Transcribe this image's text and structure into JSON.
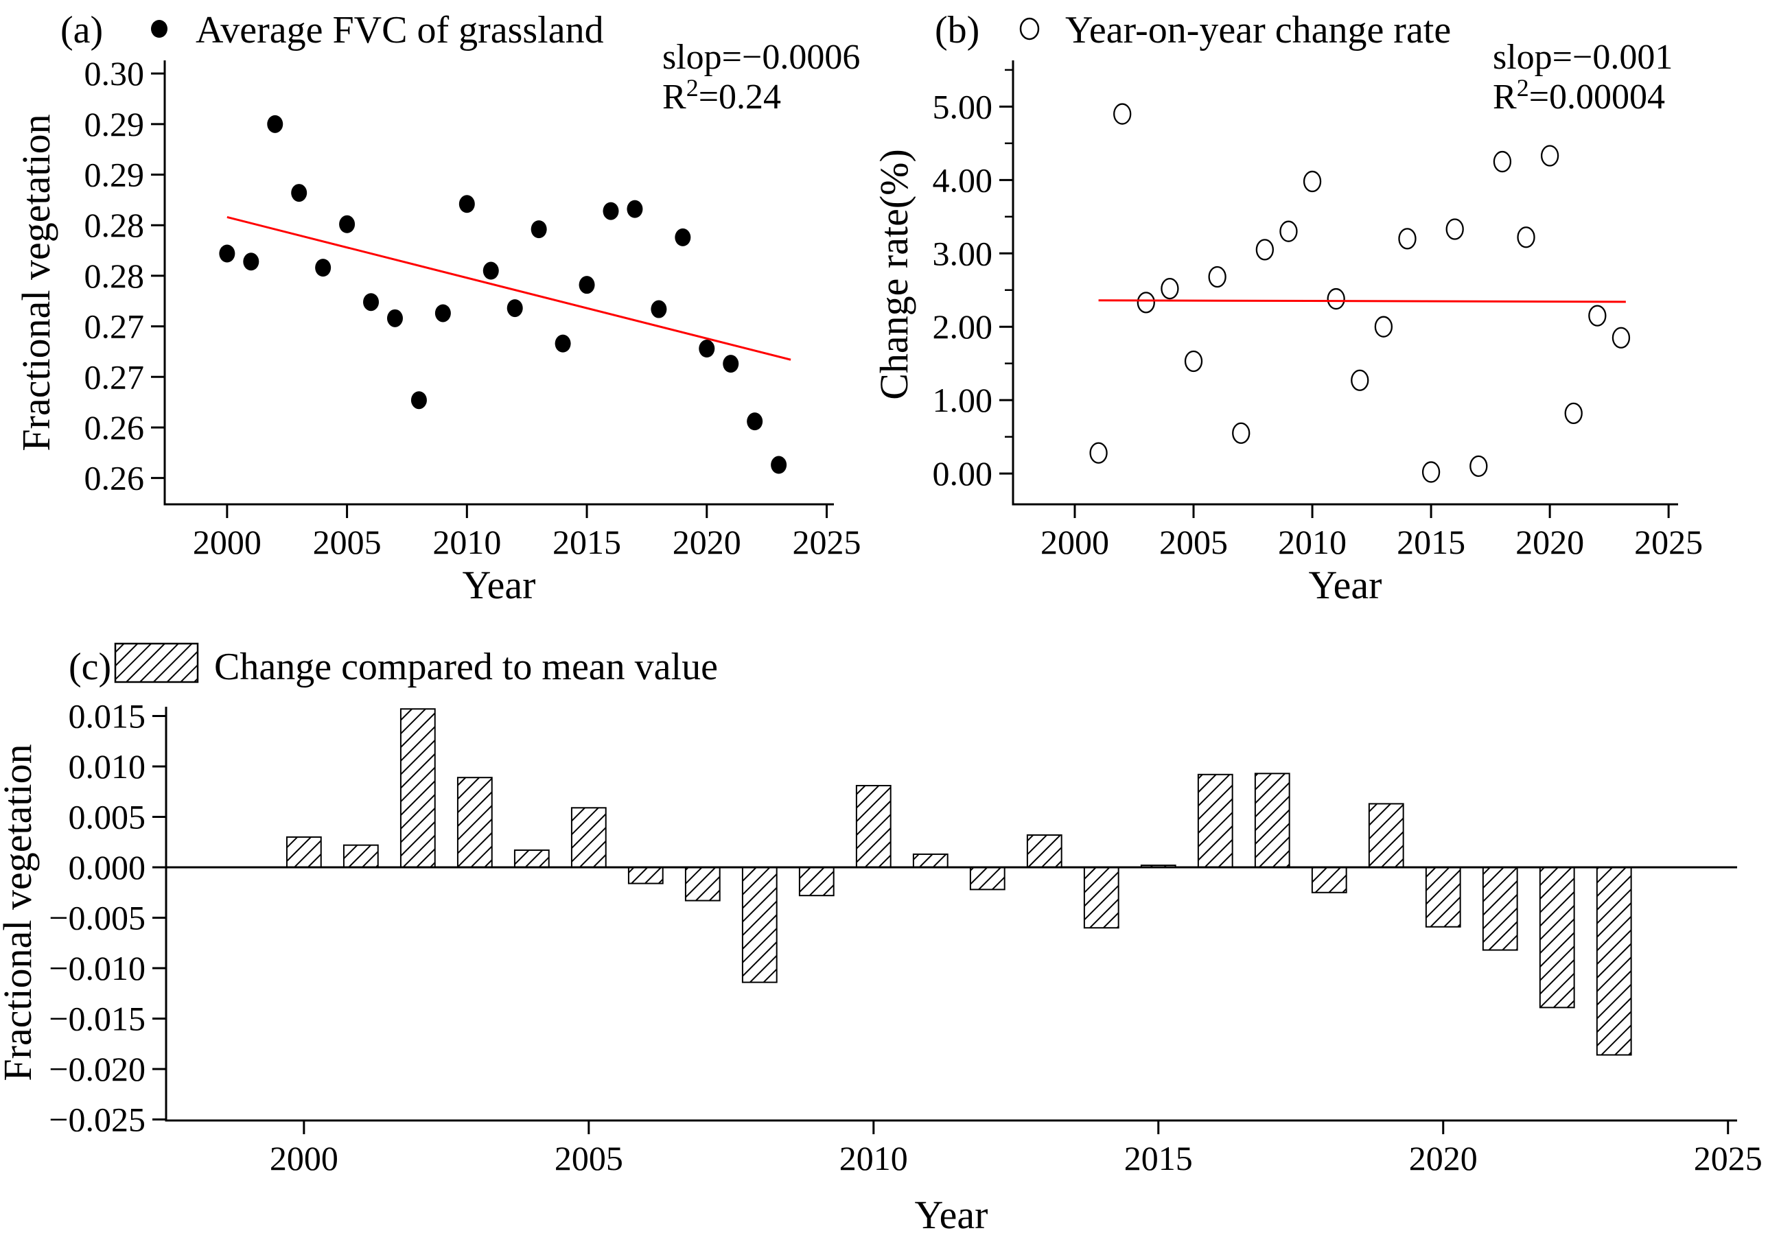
{
  "figure": {
    "background": "#ffffff",
    "ink": "#000000",
    "trend_color": "#ff0000"
  },
  "chart_data": [
    {
      "id": "a",
      "type": "scatter",
      "panel_label": "(a)",
      "legend": {
        "marker": "filled-circle",
        "label": "Average FVC of grassland",
        "position": "top-left"
      },
      "annotation": {
        "slope_text": "slop=−0.0006",
        "r2_base": "R",
        "r2_sup": "2",
        "r2_rest": "=0.24"
      },
      "xlabel": "Year",
      "ylabel": "Fractional vegetation",
      "grid": false,
      "xlim": [
        1997.4,
        2025.3
      ],
      "ylim": [
        0.2574,
        0.3013
      ],
      "x": [
        2000,
        2001,
        2002,
        2003,
        2004,
        2005,
        2006,
        2007,
        2008,
        2009,
        2010,
        2011,
        2012,
        2013,
        2014,
        2015,
        2016,
        2017,
        2018,
        2019,
        2020,
        2021,
        2022,
        2023
      ],
      "y": [
        0.2822,
        0.2814,
        0.295,
        0.2882,
        0.2808,
        0.2851,
        0.2774,
        0.2758,
        0.2677,
        0.2763,
        0.2871,
        0.2805,
        0.2768,
        0.2846,
        0.2733,
        0.2791,
        0.2864,
        0.2866,
        0.2767,
        0.2838,
        0.2728,
        0.2713,
        0.2656,
        0.2613
      ],
      "trendline": {
        "x1": 2000,
        "y1": 0.2858,
        "x2": 2023.5,
        "y2": 0.2717
      },
      "x_ticks": [
        {
          "v": 2000,
          "label": "2000"
        },
        {
          "v": 2005,
          "label": "2005"
        },
        {
          "v": 2010,
          "label": "2010"
        },
        {
          "v": 2015,
          "label": "2015"
        },
        {
          "v": 2020,
          "label": "2020"
        },
        {
          "v": 2025,
          "label": "2025"
        }
      ],
      "y_ticks": [
        {
          "v": 0.3,
          "label": "0.30"
        },
        {
          "v": 0.295,
          "label": "0.29"
        },
        {
          "v": 0.29,
          "label": "0.29"
        },
        {
          "v": 0.285,
          "label": "0.28"
        },
        {
          "v": 0.28,
          "label": "0.28"
        },
        {
          "v": 0.275,
          "label": "0.27"
        },
        {
          "v": 0.27,
          "label": "0.27"
        },
        {
          "v": 0.265,
          "label": "0.26"
        },
        {
          "v": 0.26,
          "label": "0.26"
        }
      ]
    },
    {
      "id": "b",
      "type": "scatter",
      "panel_label": "(b)",
      "legend": {
        "marker": "open-circle",
        "label": "Year-on-year change rate",
        "position": "top-left"
      },
      "annotation": {
        "slope_text": "slop=−0.001",
        "r2_base": "R",
        "r2_sup": "2",
        "r2_rest": "=0.00004"
      },
      "xlabel": "Year",
      "ylabel": "Change rate(%)",
      "grid": false,
      "xlim": [
        1997.4,
        2025.4
      ],
      "ylim": [
        -0.42,
        5.63
      ],
      "x": [
        2001,
        2002,
        2003,
        2004,
        2005,
        2006,
        2007,
        2008,
        2009,
        2010,
        2011,
        2012,
        2013,
        2014,
        2015,
        2016,
        2017,
        2018,
        2019,
        2020,
        2021,
        2022,
        2023
      ],
      "y": [
        0.28,
        4.9,
        2.33,
        2.52,
        1.53,
        2.68,
        0.55,
        3.05,
        3.3,
        3.98,
        2.38,
        1.27,
        2.0,
        3.2,
        0.02,
        3.33,
        0.1,
        4.25,
        3.22,
        4.33,
        0.82,
        2.15,
        1.85
      ],
      "trendline": {
        "x1": 2001,
        "y1": 2.36,
        "x2": 2023.2,
        "y2": 2.34
      },
      "x_ticks": [
        {
          "v": 2000,
          "label": "2000"
        },
        {
          "v": 2005,
          "label": "2005"
        },
        {
          "v": 2010,
          "label": "2010"
        },
        {
          "v": 2015,
          "label": "2015"
        },
        {
          "v": 2020,
          "label": "2020"
        },
        {
          "v": 2025,
          "label": "2025"
        }
      ],
      "y_ticks": [
        {
          "v": 5.0,
          "label": "5.00"
        },
        {
          "v": 4.0,
          "label": "4.00"
        },
        {
          "v": 3.0,
          "label": "3.00"
        },
        {
          "v": 2.0,
          "label": "2.00"
        },
        {
          "v": 1.0,
          "label": "1.00"
        },
        {
          "v": 0.0,
          "label": "0.00"
        }
      ],
      "y_minor_ticks": [
        0.5,
        1.5,
        2.5,
        3.5,
        4.5,
        5.5
      ]
    },
    {
      "id": "c",
      "type": "bar",
      "panel_label": "(c)",
      "legend": {
        "marker": "hatched-box",
        "label": "Change compared to mean value",
        "position": "top-left"
      },
      "xlabel": "Year",
      "ylabel": "Fractional vegetation",
      "grid": false,
      "bar_width_years": 0.6,
      "xlim": [
        1997.58,
        2025.16
      ],
      "ylim": [
        -0.0251,
        0.01592
      ],
      "x": [
        2000,
        2001,
        2002,
        2003,
        2004,
        2005,
        2006,
        2007,
        2008,
        2009,
        2010,
        2011,
        2012,
        2013,
        2014,
        2015,
        2016,
        2017,
        2018,
        2019,
        2020,
        2021,
        2022,
        2023
      ],
      "y": [
        0.003,
        0.0022,
        0.0157,
        0.0089,
        0.0017,
        0.0059,
        -0.0016,
        -0.0033,
        -0.0114,
        -0.0028,
        0.0081,
        0.0013,
        -0.0022,
        0.0032,
        -0.006,
        0.0002,
        0.0092,
        0.0093,
        -0.0025,
        0.0063,
        -0.0059,
        -0.0082,
        -0.0139,
        -0.0186
      ],
      "x_ticks": [
        {
          "v": 2000,
          "label": "2000"
        },
        {
          "v": 2005,
          "label": "2005"
        },
        {
          "v": 2010,
          "label": "2010"
        },
        {
          "v": 2015,
          "label": "2015"
        },
        {
          "v": 2020,
          "label": "2020"
        },
        {
          "v": 2025,
          "label": "2025"
        }
      ],
      "y_ticks": [
        {
          "v": 0.015,
          "label": "0.015"
        },
        {
          "v": 0.01,
          "label": "0.010"
        },
        {
          "v": 0.005,
          "label": "0.005"
        },
        {
          "v": 0.0,
          "label": "0.000"
        },
        {
          "v": -0.005,
          "label": "−0.005"
        },
        {
          "v": -0.01,
          "label": "−0.010"
        },
        {
          "v": -0.015,
          "label": "−0.015"
        },
        {
          "v": -0.02,
          "label": "−0.020"
        },
        {
          "v": -0.025,
          "label": "−0.025"
        }
      ]
    }
  ]
}
